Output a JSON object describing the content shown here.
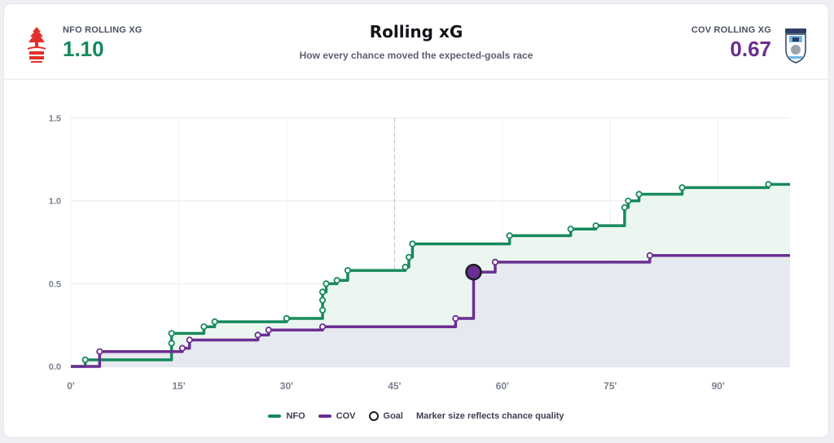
{
  "header": {
    "title": "Rolling xG",
    "subtitle": "How every chance moved the expected-goals race",
    "home": {
      "label": "NFO ROLLING XG",
      "value": "1.10",
      "crest_icon": "nottingham-forest-crest-icon"
    },
    "away": {
      "label": "COV ROLLING XG",
      "value": "0.67",
      "crest_icon": "coventry-city-crest-icon"
    }
  },
  "legend": {
    "home": "NFO",
    "away": "COV",
    "goal": "Goal",
    "note": "Marker size reflects chance quality"
  },
  "chart_data": {
    "type": "line",
    "step": true,
    "x_ticks": [
      "0'",
      "15'",
      "30'",
      "45'",
      "60'",
      "75'",
      "90'"
    ],
    "y_ticks": [
      "0.0",
      "0.5",
      "1.0",
      "1.5"
    ],
    "xlim": [
      0,
      100
    ],
    "ylim": [
      0,
      1.5
    ],
    "halftime_marker": 45,
    "grid": true,
    "colors": {
      "NFO": "#178a5b",
      "COV": "#6b2f92"
    },
    "series": [
      {
        "name": "NFO",
        "points": [
          [
            2,
            0.04
          ],
          [
            14,
            0.14
          ],
          [
            14,
            0.2
          ],
          [
            18.5,
            0.24
          ],
          [
            20,
            0.27
          ],
          [
            30,
            0.29
          ],
          [
            35,
            0.34
          ],
          [
            35,
            0.4
          ],
          [
            35,
            0.45
          ],
          [
            35.5,
            0.5
          ],
          [
            37,
            0.52
          ],
          [
            38.5,
            0.58
          ],
          [
            46.5,
            0.6
          ],
          [
            47,
            0.66
          ],
          [
            47.5,
            0.74
          ],
          [
            61,
            0.79
          ],
          [
            69.5,
            0.83
          ],
          [
            73,
            0.85
          ],
          [
            77,
            0.96
          ],
          [
            77.5,
            1.0
          ],
          [
            79,
            1.04
          ],
          [
            85,
            1.08
          ],
          [
            97,
            1.1
          ]
        ],
        "final": 1.1
      },
      {
        "name": "COV",
        "points": [
          [
            4,
            0.09
          ],
          [
            15.5,
            0.11
          ],
          [
            16.5,
            0.16
          ],
          [
            26,
            0.19
          ],
          [
            27.5,
            0.22
          ],
          [
            35,
            0.24
          ],
          [
            53.5,
            0.29
          ],
          [
            56,
            0.57,
            "goal"
          ],
          [
            59,
            0.63
          ],
          [
            80.5,
            0.67
          ]
        ],
        "final": 0.67
      }
    ]
  }
}
